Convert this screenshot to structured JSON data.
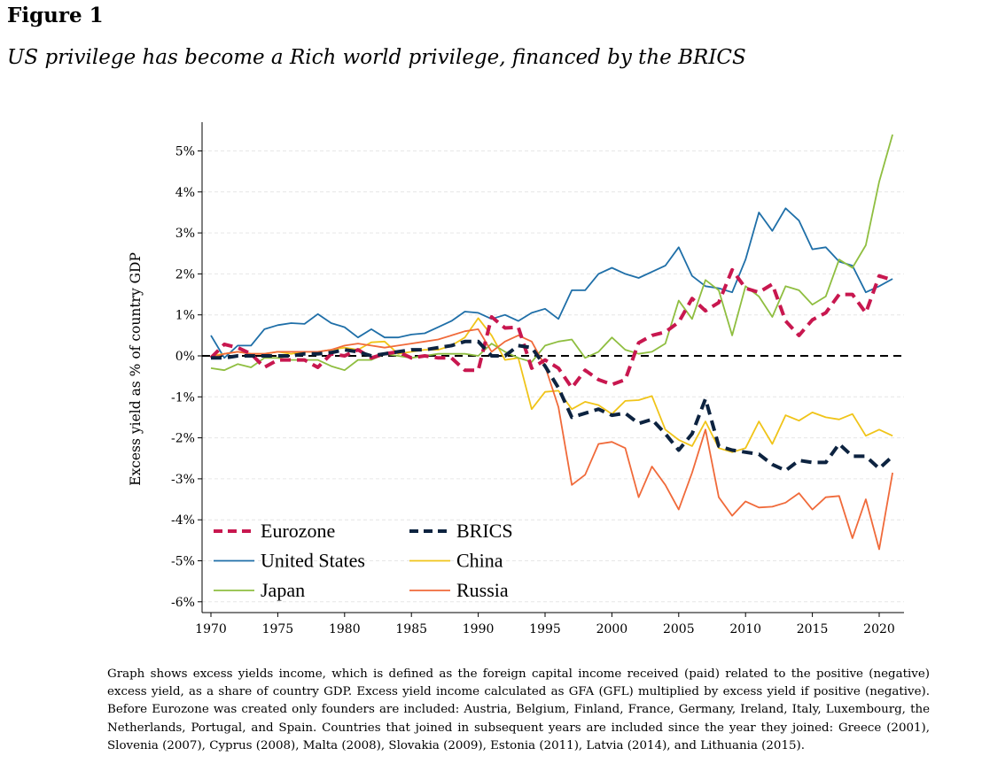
{
  "figure_label": "Figure 1",
  "title": "US privilege has become a Rich world privilege, financed by the BRICS",
  "caption": "Graph shows excess yields income, which is defined as the foreign capital income received (paid) related to the positive (negative) excess yield, as a share of country GDP. Excess yield income calculated as GFA (GFL) multiplied by excess yield if positive (negative). Before Eurozone was created only founders are included: Austria, Belgium, Finland, France, Germany, Ireland, Italy, Luxembourg, the Netherlands, Portugal, and Spain. Countries that joined in subsequent years are included since the year they joined: Greece (2001), Slovenia (2007), Cyprus (2008), Malta (2008), Slovakia (2009), Estonia (2011), Latvia (2014), and Lithuania (2015).",
  "chart_data": {
    "type": "line",
    "ylabel": "Excess yield as % of country GDP",
    "xlabel": "",
    "xlim": [
      1969,
      2022
    ],
    "ylim": [
      -6.2,
      5.7
    ],
    "x_ticks": [
      1970,
      1975,
      1980,
      1985,
      1990,
      1995,
      2000,
      2005,
      2010,
      2015,
      2020
    ],
    "x_tick_labels": [
      "1970",
      "1975",
      "1980",
      "1985",
      "1990",
      "1995",
      "2000",
      "2005",
      "2010",
      "2015",
      "2020"
    ],
    "y_ticks": [
      -6,
      -5,
      -4,
      -3,
      -2,
      -1,
      0,
      1,
      2,
      3,
      4,
      5
    ],
    "y_tick_labels": [
      "-6%",
      "-5%",
      "-4%",
      "-3%",
      "-2%",
      "-1%",
      "0%",
      "1%",
      "2%",
      "3%",
      "4%",
      "5%"
    ],
    "grid": "horizontal dashed light gray at y ticks",
    "zero_line": "black dashed",
    "legend_position": "bottom-left inside, two columns",
    "x": [
      1970,
      1971,
      1972,
      1973,
      1974,
      1975,
      1976,
      1977,
      1978,
      1979,
      1980,
      1981,
      1982,
      1983,
      1984,
      1985,
      1986,
      1987,
      1988,
      1989,
      1990,
      1991,
      1992,
      1993,
      1994,
      1995,
      1996,
      1997,
      1998,
      1999,
      2000,
      2001,
      2002,
      2003,
      2004,
      2005,
      2006,
      2007,
      2008,
      2009,
      2010,
      2011,
      2012,
      2013,
      2014,
      2015,
      2016,
      2017,
      2018,
      2019,
      2020,
      2021
    ],
    "series": [
      {
        "name": "Eurozone",
        "color": "#c8174f",
        "dash": "dashed-thick",
        "values": [
          -0.05,
          0.28,
          0.2,
          0.05,
          -0.28,
          -0.1,
          -0.1,
          -0.1,
          -0.28,
          0.05,
          0.0,
          0.15,
          -0.05,
          0.05,
          0.1,
          -0.05,
          0.0,
          -0.05,
          -0.05,
          -0.35,
          -0.35,
          0.95,
          0.68,
          0.7,
          -0.3,
          -0.1,
          -0.3,
          -0.78,
          -0.35,
          -0.58,
          -0.7,
          -0.58,
          0.32,
          0.5,
          0.58,
          0.82,
          1.4,
          1.1,
          1.3,
          2.1,
          1.65,
          1.55,
          1.75,
          0.85,
          0.5,
          0.88,
          1.05,
          1.5,
          1.5,
          1.05,
          1.95,
          1.85
        ]
      },
      {
        "name": "BRICS",
        "color": "#0d2340",
        "dash": "dashed-thick",
        "values": [
          -0.05,
          -0.05,
          0.0,
          0.0,
          0.0,
          0.0,
          0.0,
          0.05,
          0.05,
          0.08,
          0.15,
          0.1,
          0.0,
          0.05,
          0.1,
          0.15,
          0.15,
          0.2,
          0.25,
          0.35,
          0.35,
          0.0,
          0.0,
          0.25,
          0.2,
          -0.25,
          -0.78,
          -1.5,
          -1.4,
          -1.3,
          -1.45,
          -1.4,
          -1.65,
          -1.55,
          -1.9,
          -2.3,
          -1.9,
          -1.05,
          -2.2,
          -2.3,
          -2.35,
          -2.4,
          -2.65,
          -2.8,
          -2.55,
          -2.6,
          -2.6,
          -2.15,
          -2.45,
          -2.45,
          -2.75,
          -2.45
        ]
      },
      {
        "name": "United States",
        "color": "#1f6fa8",
        "dash": "solid",
        "values": [
          0.5,
          -0.05,
          0.25,
          0.25,
          0.65,
          0.75,
          0.8,
          0.78,
          1.02,
          0.8,
          0.7,
          0.45,
          0.65,
          0.45,
          0.45,
          0.52,
          0.55,
          0.7,
          0.85,
          1.08,
          1.05,
          0.9,
          1.0,
          0.85,
          1.05,
          1.15,
          0.9,
          1.6,
          1.6,
          2.0,
          2.15,
          2.0,
          1.9,
          2.05,
          2.2,
          2.65,
          1.95,
          1.7,
          1.65,
          1.55,
          2.35,
          3.5,
          3.05,
          3.6,
          3.3,
          2.6,
          2.65,
          2.3,
          2.2,
          1.55,
          1.7,
          1.88
        ]
      },
      {
        "name": "China",
        "color": "#f0c419",
        "dash": "solid",
        "values": [
          0.0,
          0.05,
          0.1,
          0.05,
          0.05,
          0.1,
          0.05,
          0.1,
          0.1,
          0.15,
          0.2,
          0.15,
          0.33,
          0.35,
          0.05,
          0.1,
          0.15,
          0.15,
          0.25,
          0.45,
          0.92,
          0.5,
          -0.1,
          -0.05,
          -1.3,
          -0.88,
          -0.85,
          -1.3,
          -1.12,
          -1.2,
          -1.42,
          -1.1,
          -1.08,
          -0.98,
          -1.8,
          -2.05,
          -2.2,
          -1.6,
          -2.25,
          -2.35,
          -2.25,
          -1.6,
          -2.15,
          -1.45,
          -1.58,
          -1.38,
          -1.5,
          -1.55,
          -1.42,
          -1.95,
          -1.8,
          -1.95
        ]
      },
      {
        "name": "Japan",
        "color": "#8fbe40",
        "dash": "solid",
        "values": [
          -0.3,
          -0.35,
          -0.2,
          -0.28,
          -0.05,
          -0.05,
          -0.1,
          -0.1,
          -0.1,
          -0.25,
          -0.35,
          -0.1,
          -0.1,
          0.05,
          0.0,
          -0.05,
          0.0,
          0.05,
          0.05,
          0.05,
          0.0,
          0.3,
          0.1,
          -0.05,
          -0.15,
          0.25,
          0.35,
          0.4,
          -0.05,
          0.1,
          0.45,
          0.15,
          0.05,
          0.1,
          0.3,
          1.35,
          0.9,
          1.85,
          1.6,
          0.5,
          1.7,
          1.45,
          0.95,
          1.7,
          1.6,
          1.25,
          1.45,
          2.35,
          2.15,
          2.7,
          4.25,
          5.4
        ]
      },
      {
        "name": "Russia",
        "color": "#f06a3a",
        "dash": "solid",
        "values": [
          -0.05,
          0.05,
          0.1,
          0.05,
          0.05,
          0.1,
          0.1,
          0.1,
          0.1,
          0.15,
          0.25,
          0.3,
          0.25,
          0.2,
          0.25,
          0.3,
          0.35,
          0.4,
          0.5,
          0.6,
          0.65,
          0.1,
          0.35,
          0.5,
          0.35,
          -0.25,
          -1.25,
          -3.15,
          -2.9,
          -2.15,
          -2.1,
          -2.25,
          -3.45,
          -2.7,
          -3.15,
          -3.75,
          -2.85,
          -1.8,
          -3.45,
          -3.9,
          -3.55,
          -3.7,
          -3.68,
          -3.58,
          -3.35,
          -3.75,
          -3.45,
          -3.42,
          -4.45,
          -3.5,
          -4.72,
          -2.85
        ]
      }
    ]
  }
}
